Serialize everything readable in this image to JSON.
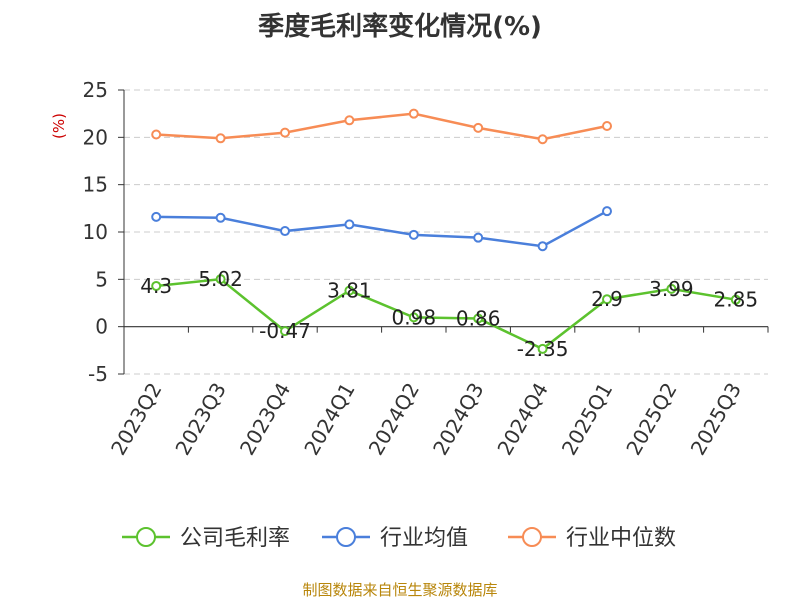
{
  "chart_data": {
    "type": "line",
    "title": "季度毛利率变化情况(%)",
    "ylabel": "(%)",
    "xlabel": "",
    "ylim": [
      -5,
      25
    ],
    "yticks": [
      25,
      20,
      15,
      10,
      5,
      0,
      -5
    ],
    "grid": true,
    "legend": "bottom",
    "categories": [
      "2023Q2",
      "2023Q3",
      "2023Q4",
      "2024Q1",
      "2024Q2",
      "2024Q3",
      "2024Q4",
      "2025Q1",
      "2025Q2",
      "2025Q3"
    ],
    "series": [
      {
        "name": "公司毛利率",
        "color": "#5cc22e",
        "labels": true,
        "values": [
          4.3,
          5.02,
          -0.47,
          3.81,
          0.98,
          0.86,
          -2.35,
          2.9,
          3.99,
          2.85
        ]
      },
      {
        "name": "行业均值",
        "color": "#4a7fdb",
        "labels": false,
        "values": [
          11.6,
          11.5,
          10.1,
          10.8,
          9.7,
          9.4,
          8.5,
          12.2,
          null,
          null
        ]
      },
      {
        "name": "行业中位数",
        "color": "#f78c55",
        "labels": false,
        "values": [
          20.3,
          19.9,
          20.5,
          21.8,
          22.5,
          21.0,
          19.8,
          21.2,
          null,
          null
        ]
      }
    ]
  },
  "source": "制图数据来自恒生聚源数据库"
}
